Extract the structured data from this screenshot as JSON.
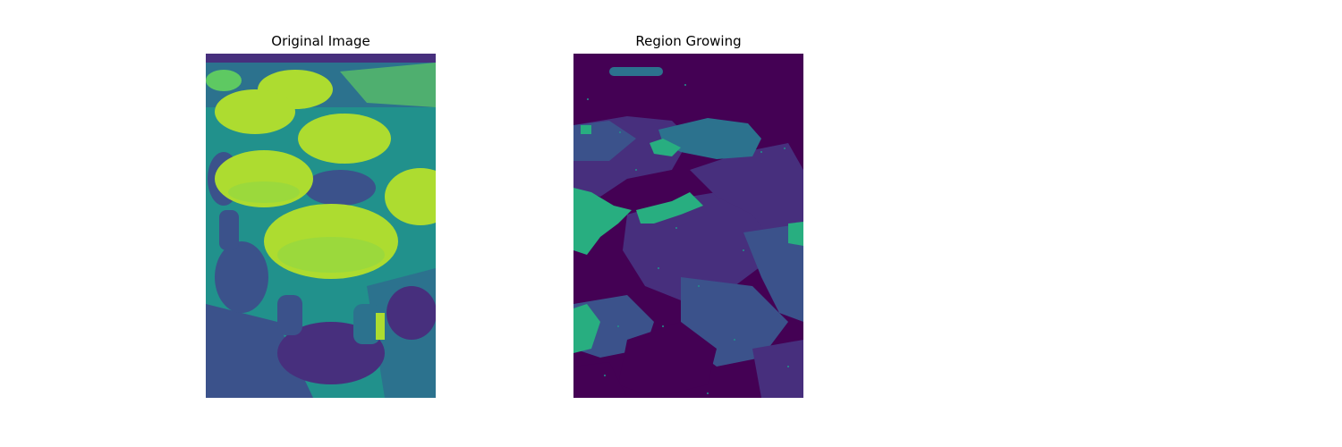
{
  "panels": [
    {
      "title": "Original Image"
    },
    {
      "title": "Region Growing"
    }
  ],
  "colors": {
    "viridis_dark": "#440154",
    "viridis_purple": "#472f7d",
    "viridis_blue": "#3b528b",
    "viridis_steel": "#2c728e",
    "viridis_teal": "#21918c",
    "viridis_green": "#28ae80",
    "viridis_light_green": "#5ec962",
    "viridis_yellow_green": "#addc30",
    "viridis_yellow": "#fde725"
  }
}
